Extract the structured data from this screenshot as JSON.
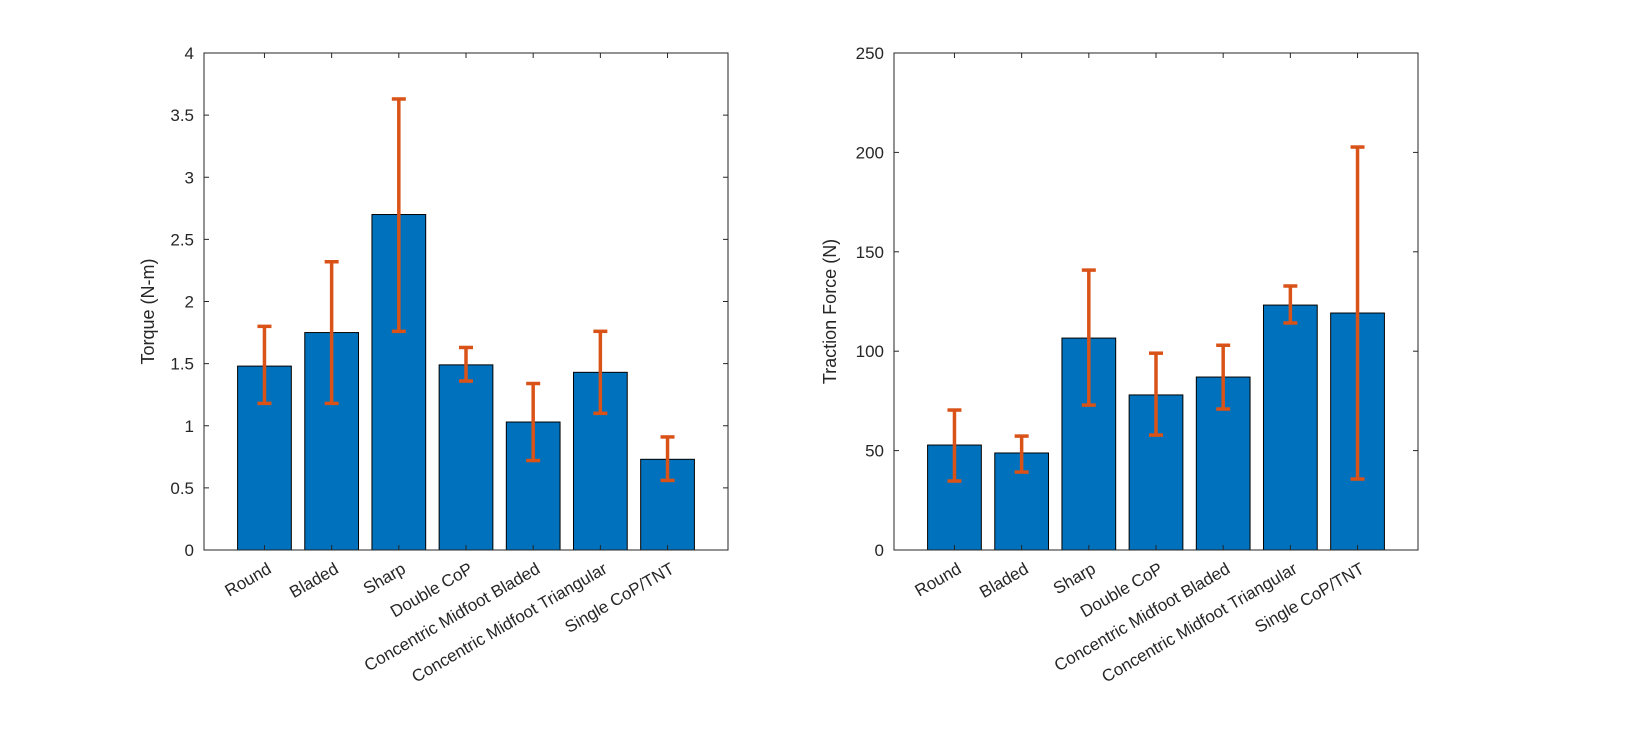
{
  "chart_data": [
    {
      "type": "bar",
      "categories": [
        "Round",
        "Bladed",
        "Sharp",
        "Double CoP",
        "Concentric Midfoot Bladed",
        "Concentric Midfoot Triangular",
        "Single CoP/TNT"
      ],
      "values": [
        1.48,
        1.75,
        2.7,
        1.49,
        1.03,
        1.43,
        0.73
      ],
      "error_upper": [
        1.8,
        2.32,
        3.63,
        1.63,
        1.34,
        1.76,
        0.91
      ],
      "error_lower": [
        1.18,
        1.18,
        1.76,
        1.36,
        0.72,
        1.1,
        0.56
      ],
      "xlabel": "",
      "ylabel": "Torque (N-m)",
      "ylim": [
        0,
        4
      ],
      "yticks": [
        0,
        0.5,
        1,
        1.5,
        2,
        2.5,
        3,
        3.5,
        4
      ],
      "ytick_labels": [
        "0",
        "0.5",
        "1",
        "1.5",
        "2",
        "2.5",
        "3",
        "3.5",
        "4"
      ],
      "grid": false,
      "bar_color": "#0072BD",
      "error_color": "#D95319"
    },
    {
      "type": "bar",
      "categories": [
        "Round",
        "Bladed",
        "Sharp",
        "Double CoP",
        "Concentric Midfoot Bladed",
        "Concentric Midfoot Triangular",
        "Single CoP/TNT"
      ],
      "values": [
        52.8,
        48.8,
        106.6,
        78,
        87,
        123.2,
        119.2
      ],
      "error_upper": [
        70.4,
        57.3,
        140.8,
        99,
        103,
        132.8,
        202.7
      ],
      "error_lower": [
        34.7,
        39.2,
        72.9,
        57.8,
        70.9,
        114.2,
        35.7
      ],
      "xlabel": "",
      "ylabel": "Traction Force (N)",
      "ylim": [
        0,
        250
      ],
      "yticks": [
        0,
        50,
        100,
        150,
        200,
        250
      ],
      "ytick_labels": [
        "0",
        "50",
        "100",
        "150",
        "200",
        "250"
      ],
      "grid": false,
      "bar_color": "#0072BD",
      "error_color": "#D95319"
    }
  ]
}
